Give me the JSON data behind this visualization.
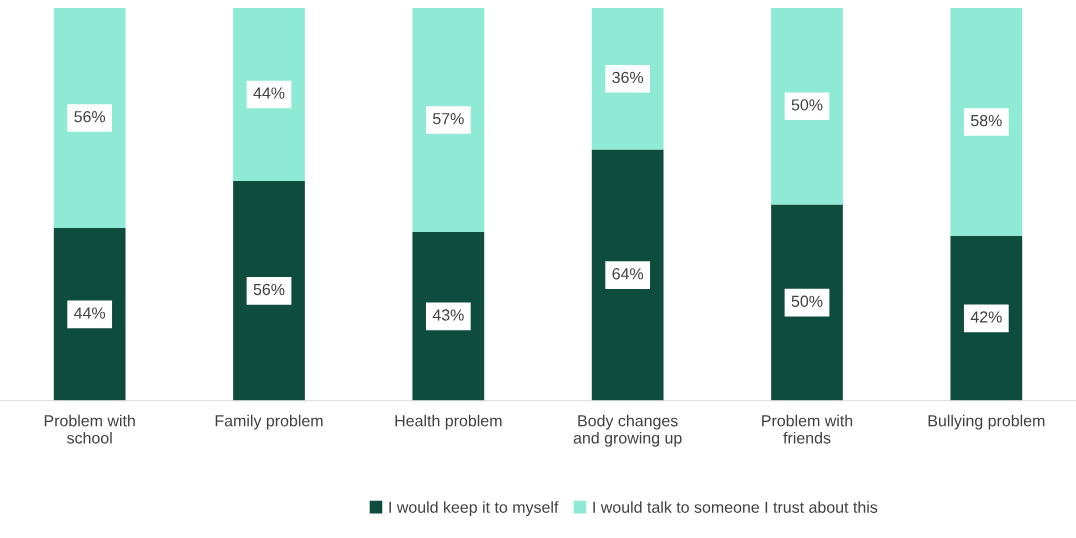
{
  "chart_data": {
    "type": "bar",
    "stacked": true,
    "categories": [
      "Problem with\nschool",
      "Family problem",
      "Health problem",
      "Body changes\nand growing up",
      "Problem with\nfriends",
      "Bullying problem"
    ],
    "series": [
      {
        "name": "I would keep it to myself",
        "color": "#0e4d3e",
        "values": [
          44,
          56,
          43,
          64,
          50,
          42
        ],
        "value_labels": [
          "44%",
          "56%",
          "43%",
          "64%",
          "50%",
          "42%"
        ]
      },
      {
        "name": "I would talk to someone I trust about this",
        "color": "#8eead4",
        "values": [
          56,
          44,
          57,
          36,
          50,
          58
        ],
        "value_labels": [
          "56%",
          "44%",
          "57%",
          "36%",
          "50%",
          "58%"
        ]
      }
    ],
    "legend": "bottom",
    "grid": false
  }
}
